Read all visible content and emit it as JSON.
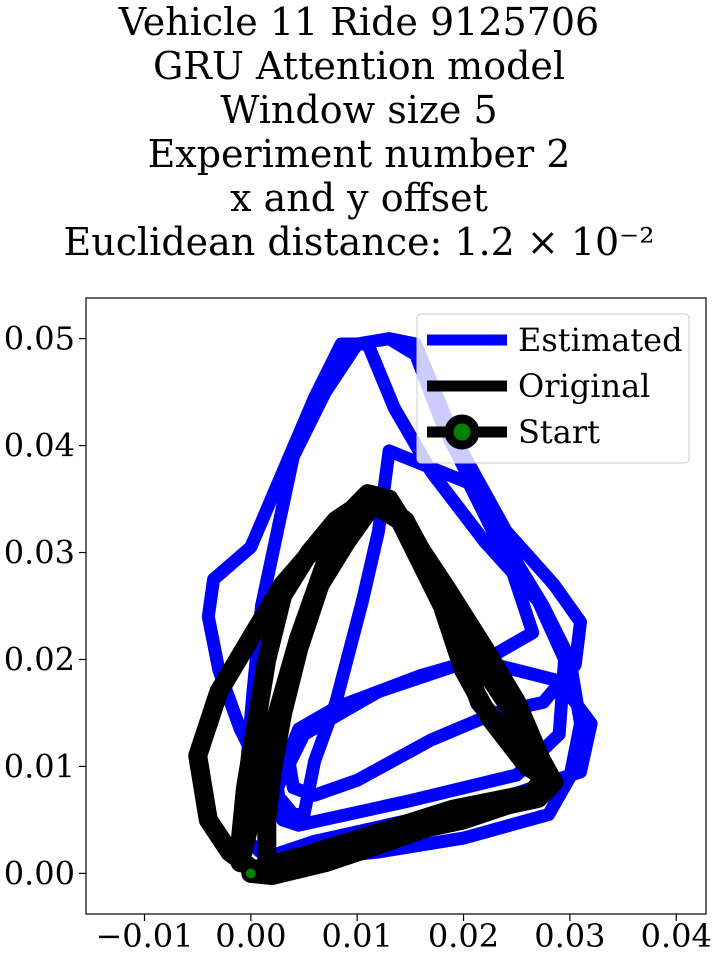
{
  "title_lines": [
    "Vehicle 11 Ride 9125706",
    "GRU Attention model",
    "Window size 5",
    "Experiment number 2",
    "x and y offset",
    "Euclidean distance: 1.2 × 10⁻²"
  ],
  "chart_data": {
    "type": "line",
    "title": "Vehicle 11 Ride 9125706\nGRU Attention model\nWindow size 5\nExperiment number 2\nx and y offset\nEuclidean distance: 1.2 × 10⁻²",
    "xlim": [
      -0.0155,
      0.0428
    ],
    "ylim": [
      -0.0038,
      0.0538
    ],
    "xticks": [
      -0.01,
      0.0,
      0.01,
      0.02,
      0.03,
      0.04
    ],
    "xtick_labels": [
      "−0.01",
      "0.00",
      "0.01",
      "0.02",
      "0.03",
      "0.04"
    ],
    "yticks": [
      0.0,
      0.01,
      0.02,
      0.03,
      0.04,
      0.05
    ],
    "ytick_labels": [
      "0.00",
      "0.01",
      "0.02",
      "0.03",
      "0.04",
      "0.05"
    ],
    "grid": false,
    "legend_position": "upper right",
    "series": [
      {
        "name": "Estimated",
        "color": "#0000ff",
        "points": [
          [
            0.0,
            0.0
          ],
          [
            0.004,
            0.0012
          ],
          [
            0.012,
            0.002
          ],
          [
            0.02,
            0.0033
          ],
          [
            0.028,
            0.0055
          ],
          [
            0.03,
            0.009
          ],
          [
            0.031,
            0.014
          ],
          [
            0.03,
            0.02
          ],
          [
            0.0275,
            0.025
          ],
          [
            0.022,
            0.034
          ],
          [
            0.018,
            0.042
          ],
          [
            0.0155,
            0.0485
          ],
          [
            0.013,
            0.05
          ],
          [
            0.01,
            0.0495
          ],
          [
            0.007,
            0.045
          ],
          [
            0.004,
            0.039
          ],
          [
            0.0025,
            0.032
          ],
          [
            0.001,
            0.025
          ],
          [
            0.0002,
            0.017
          ],
          [
            -0.0005,
            0.009
          ],
          [
            -0.0003,
            0.003
          ],
          [
            0.0015,
            0.0015
          ],
          [
            0.006,
            0.003
          ],
          [
            0.015,
            0.005
          ],
          [
            0.025,
            0.0075
          ],
          [
            0.031,
            0.0095
          ],
          [
            0.032,
            0.014
          ],
          [
            0.029,
            0.018
          ],
          [
            0.021,
            0.02
          ],
          [
            0.012,
            0.017
          ],
          [
            0.005,
            0.013
          ],
          [
            0.0025,
            0.008
          ],
          [
            0.003,
            0.005
          ],
          [
            0.0045,
            0.0045
          ],
          [
            0.015,
            0.0068
          ],
          [
            0.025,
            0.0092
          ],
          [
            0.029,
            0.013
          ],
          [
            0.0295,
            0.02
          ],
          [
            0.027,
            0.0255
          ],
          [
            0.022,
            0.031
          ],
          [
            0.017,
            0.0375
          ],
          [
            0.0135,
            0.0435
          ],
          [
            0.011,
            0.0495
          ],
          [
            0.0085,
            0.0495
          ],
          [
            0.006,
            0.0445
          ],
          [
            0.003,
            0.0375
          ],
          [
            0.0,
            0.0305
          ],
          [
            -0.0035,
            0.0275
          ],
          [
            -0.004,
            0.024
          ],
          [
            -0.003,
            0.019
          ],
          [
            -0.001,
            0.0135
          ],
          [
            0.0015,
            0.0085
          ],
          [
            0.004,
            0.0055
          ],
          [
            0.005,
            0.0055
          ],
          [
            0.006,
            0.0105
          ],
          [
            0.008,
            0.016
          ],
          [
            0.0105,
            0.0255
          ],
          [
            0.012,
            0.032
          ],
          [
            0.013,
            0.0395
          ],
          [
            0.0155,
            0.0385
          ],
          [
            0.0205,
            0.0365
          ],
          [
            0.0245,
            0.0285
          ],
          [
            0.0265,
            0.0225
          ],
          [
            0.023,
            0.0205
          ],
          [
            0.016,
            0.0185
          ],
          [
            0.008,
            0.0155
          ],
          [
            0.0045,
            0.0135
          ],
          [
            0.0035,
            0.011
          ],
          [
            0.004,
            0.008
          ],
          [
            0.006,
            0.0073
          ],
          [
            0.01,
            0.0087
          ],
          [
            0.017,
            0.0125
          ],
          [
            0.023,
            0.015
          ],
          [
            0.0275,
            0.016
          ],
          [
            0.0305,
            0.0195
          ],
          [
            0.031,
            0.0235
          ],
          [
            0.0285,
            0.027
          ],
          [
            0.024,
            0.032
          ],
          [
            0.019,
            0.041
          ],
          [
            0.0155,
            0.0495
          ],
          [
            0.013,
            0.05
          ]
        ]
      },
      {
        "name": "Original",
        "color": "#000000",
        "points": [
          [
            0.0,
            0.0
          ],
          [
            0.002,
            -0.0002
          ],
          [
            0.007,
            0.001
          ],
          [
            0.013,
            0.003
          ],
          [
            0.02,
            0.0055
          ],
          [
            0.027,
            0.007
          ],
          [
            0.0285,
            0.0085
          ],
          [
            0.026,
            0.013
          ],
          [
            0.022,
            0.019
          ],
          [
            0.0185,
            0.025
          ],
          [
            0.0155,
            0.031
          ],
          [
            0.013,
            0.035
          ],
          [
            0.011,
            0.0355
          ],
          [
            0.0095,
            0.034
          ],
          [
            0.007,
            0.029
          ],
          [
            0.0045,
            0.022
          ],
          [
            0.0025,
            0.015
          ],
          [
            0.0007,
            0.008
          ],
          [
            -0.0005,
            0.003
          ],
          [
            -0.001,
            0.001
          ],
          [
            -0.001,
            0.003
          ],
          [
            -0.0005,
            0.008
          ],
          [
            0.0005,
            0.014
          ],
          [
            0.0015,
            0.02
          ],
          [
            0.003,
            0.026
          ],
          [
            0.0055,
            0.03
          ],
          [
            0.008,
            0.033
          ],
          [
            0.011,
            0.035
          ],
          [
            0.0135,
            0.034
          ],
          [
            0.0155,
            0.031
          ],
          [
            0.0185,
            0.0265
          ],
          [
            0.022,
            0.021
          ],
          [
            0.025,
            0.016
          ],
          [
            0.028,
            0.009
          ],
          [
            0.026,
            0.007
          ],
          [
            0.02,
            0.005
          ],
          [
            0.013,
            0.0035
          ],
          [
            0.006,
            0.0015
          ],
          [
            0.001,
            0.0003
          ],
          [
            0.0,
            0.0005
          ],
          [
            -0.002,
            0.002
          ],
          [
            -0.004,
            0.005
          ],
          [
            -0.005,
            0.011
          ],
          [
            -0.003,
            0.017
          ],
          [
            0.0,
            0.022
          ],
          [
            0.003,
            0.027
          ],
          [
            0.0065,
            0.031
          ],
          [
            0.0095,
            0.034
          ],
          [
            0.012,
            0.035
          ],
          [
            0.0145,
            0.033
          ],
          [
            0.0175,
            0.0275
          ],
          [
            0.0195,
            0.0215
          ],
          [
            0.0215,
            0.016
          ],
          [
            0.0245,
            0.0125
          ],
          [
            0.0275,
            0.009
          ],
          [
            0.0265,
            0.0075
          ],
          [
            0.019,
            0.006
          ],
          [
            0.012,
            0.0038
          ],
          [
            0.0055,
            0.0018
          ],
          [
            0.0015,
            0.0007
          ],
          [
            0.0015,
            0.002
          ],
          [
            0.0015,
            0.005
          ],
          [
            0.002,
            0.0095
          ],
          [
            0.003,
            0.015
          ],
          [
            0.0045,
            0.021
          ],
          [
            0.0065,
            0.027
          ],
          [
            0.009,
            0.031
          ],
          [
            0.0115,
            0.0345
          ],
          [
            0.014,
            0.033
          ],
          [
            0.016,
            0.029
          ],
          [
            0.018,
            0.025
          ],
          [
            0.02,
            0.019
          ],
          [
            0.0225,
            0.0145
          ],
          [
            0.026,
            0.01
          ],
          [
            0.0285,
            0.0085
          ]
        ]
      }
    ],
    "start": {
      "name": "Start",
      "x": 0.0,
      "y": 0.0,
      "marker_color": "#008000",
      "marker_edge": "#000000"
    },
    "legend": [
      {
        "label": "Estimated",
        "style": "line",
        "color": "#0000ff"
      },
      {
        "label": "Original",
        "style": "line",
        "color": "#000000"
      },
      {
        "label": "Start",
        "style": "line-marker",
        "color": "#000000",
        "marker_color": "#008000"
      }
    ]
  }
}
